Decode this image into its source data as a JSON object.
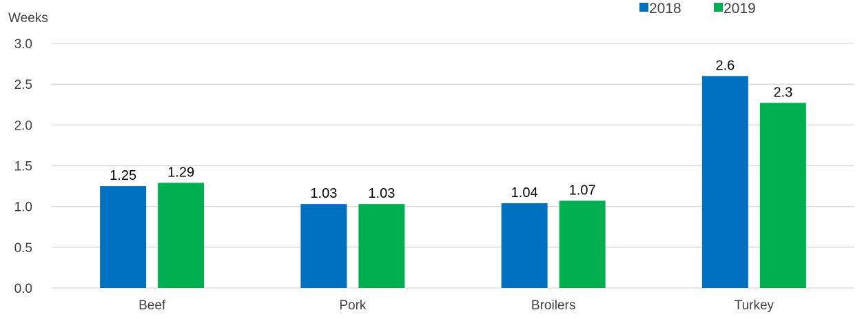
{
  "chart_data": {
    "type": "bar",
    "title": "",
    "xlabel": "",
    "ylabel": "Weeks",
    "categories": [
      "Beef",
      "Pork",
      "Broilers",
      "Turkey"
    ],
    "series": [
      {
        "name": "2018",
        "color": "#0070c0",
        "values": [
          1.25,
          1.03,
          1.04,
          2.6
        ],
        "labels": [
          "1.25",
          "1.03",
          "1.04",
          "2.6"
        ]
      },
      {
        "name": "2019",
        "color": "#00b050",
        "values": [
          1.29,
          1.03,
          1.07,
          2.27
        ],
        "labels": [
          "1.29",
          "1.03",
          "1.07",
          "2.3"
        ]
      }
    ],
    "ylim": [
      0,
      3.0
    ],
    "yticks": [
      "0.0",
      "0.5",
      "1.0",
      "1.5",
      "2.0",
      "2.5",
      "3.0"
    ],
    "grid": true,
    "legend": "top-right"
  }
}
